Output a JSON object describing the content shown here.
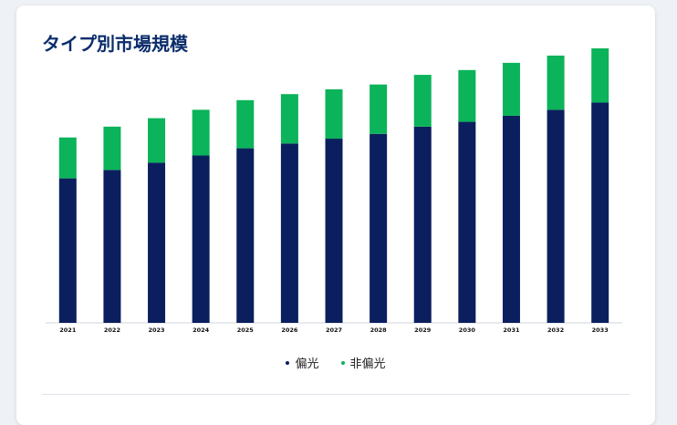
{
  "page": {
    "title": "タイプ別市場規模"
  },
  "colors": {
    "series_bottom": "#0b1f5e",
    "series_top": "#0bb35a",
    "title": "#0b2d6b",
    "axis": "#cfd4dc"
  },
  "chart_data": {
    "type": "bar",
    "stacked": true,
    "categories": [
      "2021",
      "2022",
      "2023",
      "2024",
      "2025",
      "2026",
      "2027",
      "2028",
      "2029",
      "2030",
      "2031",
      "2032",
      "2033"
    ],
    "series": [
      {
        "name": "偏光",
        "color": "#0b1f5e",
        "values": [
          120,
          127,
          133,
          139,
          145,
          149,
          153,
          157,
          163,
          167,
          172,
          177,
          183
        ]
      },
      {
        "name": "非偏光",
        "color": "#0bb35a",
        "values": [
          34,
          36,
          37,
          38,
          40,
          41,
          41,
          41,
          43,
          43,
          44,
          45,
          45
        ]
      }
    ],
    "ylim": [
      0,
      250
    ],
    "grid": false,
    "legend_position": "bottom"
  }
}
